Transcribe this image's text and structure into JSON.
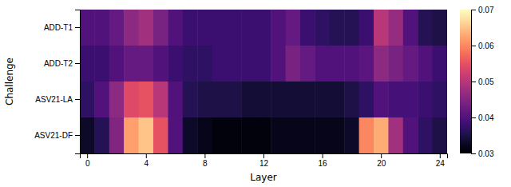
{
  "chart_data": {
    "type": "heatmap",
    "xlabel": "Layer",
    "ylabel": "Challenge",
    "categories": [
      "ADD-T1",
      "ADD-T2",
      "ASV21-LA",
      "ASV21-DF"
    ],
    "x": [
      0,
      1,
      2,
      3,
      4,
      5,
      6,
      7,
      8,
      9,
      10,
      11,
      12,
      13,
      14,
      15,
      16,
      17,
      18,
      19,
      20,
      21,
      22,
      23,
      24
    ],
    "xlim": [
      -0.5,
      24.5
    ],
    "xticks": [
      0,
      4,
      8,
      12,
      16,
      20,
      24
    ],
    "color": "magma",
    "colorbar_range": [
      0.03,
      0.07
    ],
    "colorbar_ticks": [
      0.03,
      0.04,
      0.05,
      0.06,
      0.07
    ],
    "values": [
      [
        0.04,
        0.04,
        0.042,
        0.046,
        0.048,
        0.044,
        0.04,
        0.038,
        0.038,
        0.038,
        0.038,
        0.038,
        0.038,
        0.04,
        0.042,
        0.038,
        0.037,
        0.036,
        0.036,
        0.038,
        0.05,
        0.047,
        0.04,
        0.036,
        0.035
      ],
      [
        0.038,
        0.038,
        0.04,
        0.042,
        0.042,
        0.04,
        0.038,
        0.037,
        0.037,
        0.038,
        0.038,
        0.038,
        0.038,
        0.04,
        0.044,
        0.042,
        0.04,
        0.04,
        0.04,
        0.041,
        0.046,
        0.044,
        0.042,
        0.04,
        0.038
      ],
      [
        0.037,
        0.04,
        0.046,
        0.054,
        0.055,
        0.05,
        0.04,
        0.036,
        0.035,
        0.035,
        0.035,
        0.034,
        0.034,
        0.034,
        0.034,
        0.034,
        0.034,
        0.034,
        0.035,
        0.037,
        0.04,
        0.039,
        0.039,
        0.038,
        0.037
      ],
      [
        0.033,
        0.036,
        0.045,
        0.062,
        0.065,
        0.055,
        0.04,
        0.033,
        0.032,
        0.031,
        0.031,
        0.031,
        0.031,
        0.032,
        0.032,
        0.032,
        0.032,
        0.032,
        0.033,
        0.06,
        0.063,
        0.048,
        0.04,
        0.037,
        0.035
      ]
    ]
  }
}
